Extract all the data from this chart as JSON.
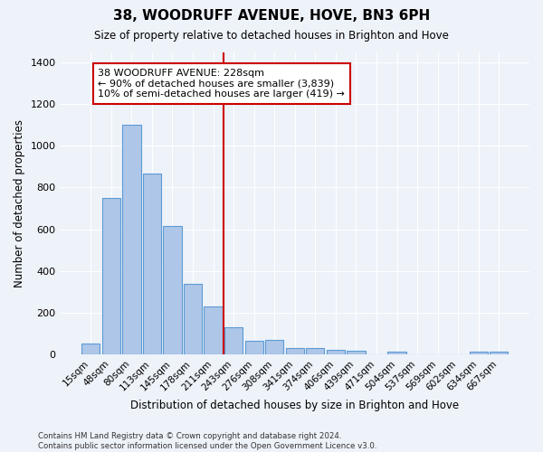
{
  "title": "38, WOODRUFF AVENUE, HOVE, BN3 6PH",
  "subtitle": "Size of property relative to detached houses in Brighton and Hove",
  "xlabel": "Distribution of detached houses by size in Brighton and Hove",
  "ylabel": "Number of detached properties",
  "footnote1": "Contains HM Land Registry data © Crown copyright and database right 2024.",
  "footnote2": "Contains public sector information licensed under the Open Government Licence v3.0.",
  "bar_labels": [
    "15sqm",
    "48sqm",
    "80sqm",
    "113sqm",
    "145sqm",
    "178sqm",
    "211sqm",
    "243sqm",
    "276sqm",
    "308sqm",
    "341sqm",
    "374sqm",
    "406sqm",
    "439sqm",
    "471sqm",
    "504sqm",
    "537sqm",
    "569sqm",
    "602sqm",
    "634sqm",
    "667sqm"
  ],
  "bar_values": [
    50,
    750,
    1100,
    865,
    615,
    340,
    228,
    130,
    65,
    70,
    30,
    28,
    20,
    15,
    0,
    12,
    0,
    0,
    0,
    12,
    12
  ],
  "bar_color": "#aec6e8",
  "bar_edge_color": "#5b9bd5",
  "highlight_line_color": "#cc0000",
  "annotation_text": "38 WOODRUFF AVENUE: 228sqm\n← 90% of detached houses are smaller (3,839)\n10% of semi-detached houses are larger (419) →",
  "annotation_box_color": "#cc0000",
  "bg_color": "#eef2f9",
  "grid_color": "#ffffff",
  "ylim": [
    0,
    1450
  ],
  "yticks": [
    0,
    200,
    400,
    600,
    800,
    1000,
    1200,
    1400
  ]
}
